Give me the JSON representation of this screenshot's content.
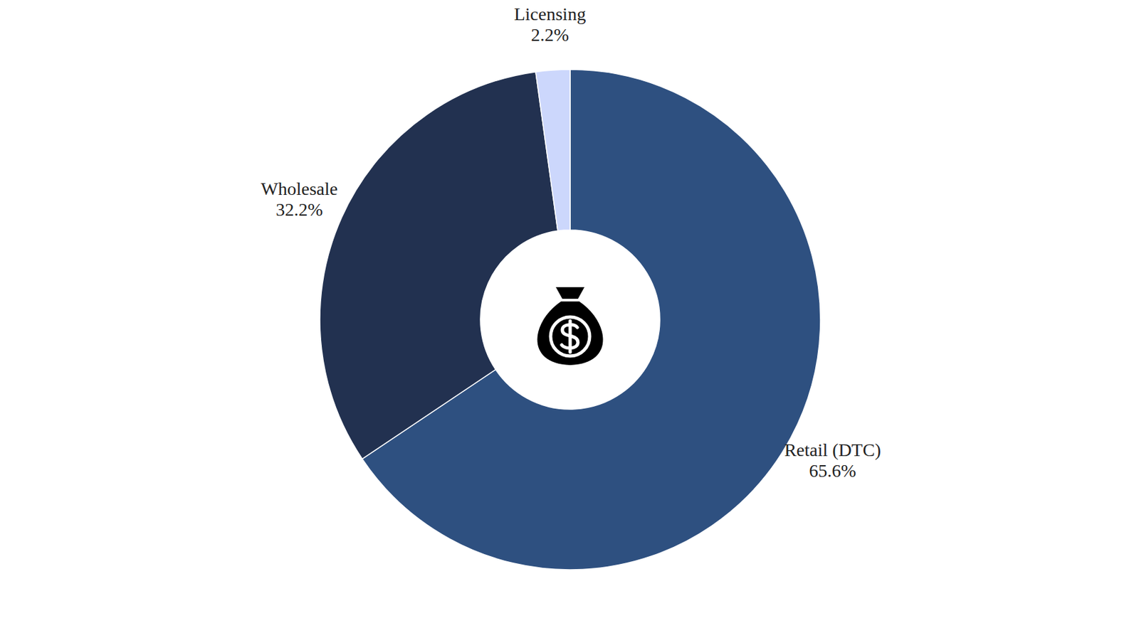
{
  "chart_data": {
    "type": "pie",
    "categories": [
      "Retail (DTC)",
      "Wholesale",
      "Licensing"
    ],
    "values": [
      65.6,
      32.2,
      2.2
    ],
    "value_labels": [
      "65.6%",
      "32.2%",
      "2.2%"
    ],
    "colors": [
      "#2e5080",
      "#223150",
      "#ccd7fc"
    ],
    "data_labels": true
  }
}
